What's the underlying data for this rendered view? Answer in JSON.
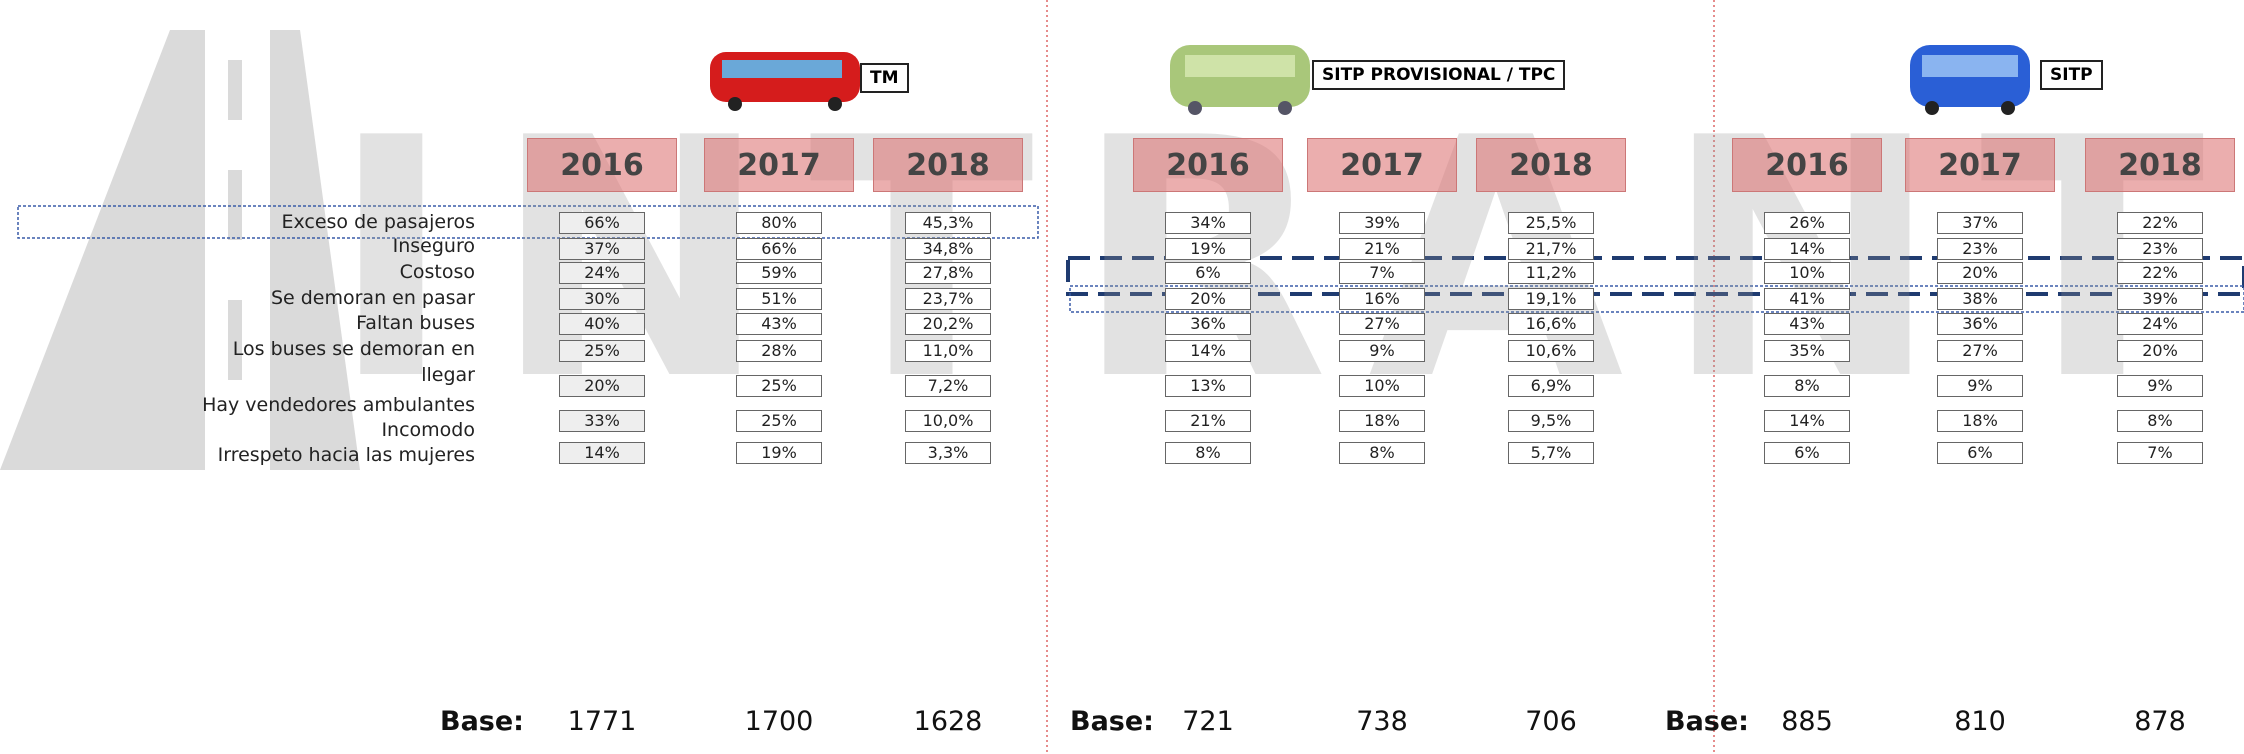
{
  "watermark": "INTRANT",
  "rows": [
    "Exceso de pasajeros",
    "Inseguro",
    "Costoso",
    "Se demoran en pasar",
    "Faltan buses",
    "Los buses se demoran en llegar",
    "Hay vendedores ambulantes",
    "Incomodo",
    "Irrespeto hacia las mujeres"
  ],
  "base_label": "Base:",
  "groups": [
    {
      "name": "TM",
      "years": [
        {
          "year": "2016",
          "values": [
            "66%",
            "37%",
            "24%",
            "30%",
            "40%",
            "25%",
            "20%",
            "33%",
            "14%"
          ],
          "base": "1771"
        },
        {
          "year": "2017",
          "values": [
            "80%",
            "66%",
            "59%",
            "51%",
            "43%",
            "28%",
            "25%",
            "25%",
            "19%"
          ],
          "base": "1700"
        },
        {
          "year": "2018",
          "values": [
            "45,3%",
            "34,8%",
            "27,8%",
            "23,7%",
            "20,2%",
            "11,0%",
            "7,2%",
            "10,0%",
            "3,3%"
          ],
          "base": "1628"
        }
      ]
    },
    {
      "name": "SITP PROVISIONAL / TPC",
      "years": [
        {
          "year": "2016",
          "values": [
            "34%",
            "19%",
            "6%",
            "20%",
            "36%",
            "14%",
            "13%",
            "21%",
            "8%"
          ],
          "base": "721"
        },
        {
          "year": "2017",
          "values": [
            "39%",
            "21%",
            "7%",
            "16%",
            "27%",
            "9%",
            "10%",
            "18%",
            "8%"
          ],
          "base": "738"
        },
        {
          "year": "2018",
          "values": [
            "25,5%",
            "21,7%",
            "11,2%",
            "19,1%",
            "16,6%",
            "10,6%",
            "6,9%",
            "9,5%",
            "5,7%"
          ],
          "base": "706"
        }
      ]
    },
    {
      "name": "SITP",
      "years": [
        {
          "year": "2016",
          "values": [
            "26%",
            "14%",
            "10%",
            "41%",
            "43%",
            "35%",
            "8%",
            "14%",
            "6%"
          ],
          "base": "885"
        },
        {
          "year": "2017",
          "values": [
            "37%",
            "23%",
            "20%",
            "38%",
            "36%",
            "27%",
            "9%",
            "18%",
            "6%"
          ],
          "base": "810"
        },
        {
          "year": "2018",
          "values": [
            "22%",
            "23%",
            "22%",
            "39%",
            "24%",
            "20%",
            "9%",
            "8%",
            "7%"
          ],
          "base": "878"
        }
      ]
    }
  ]
}
